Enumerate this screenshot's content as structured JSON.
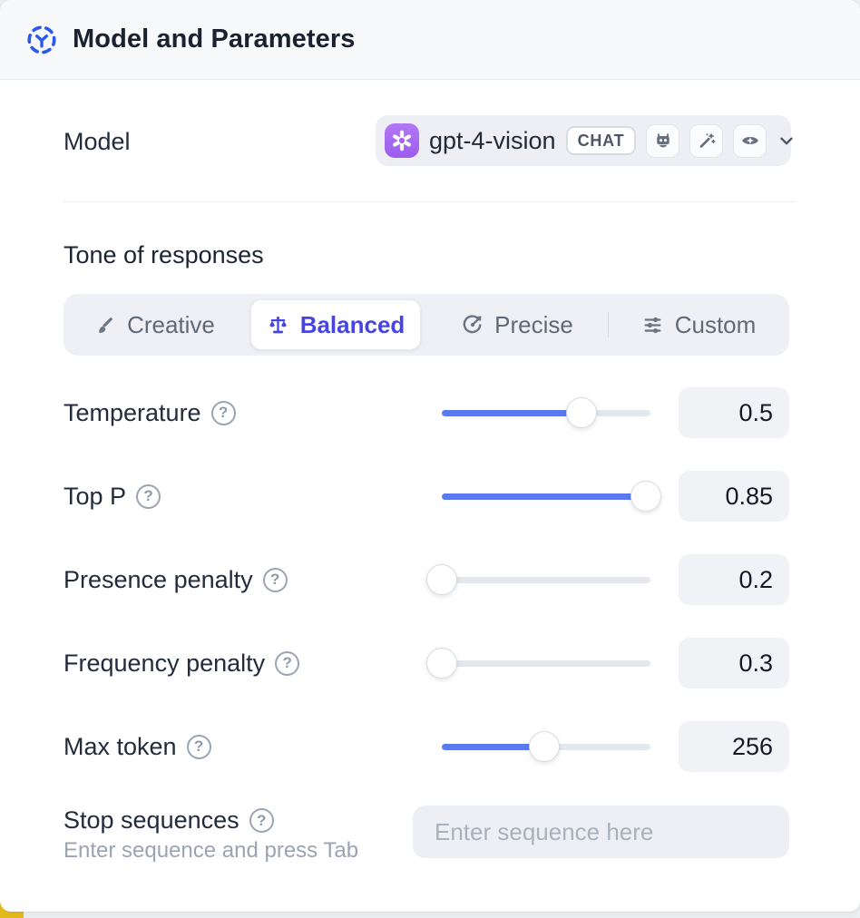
{
  "colors": {
    "accent_blue": "#5b79f1",
    "selected_indigo": "#4645e2",
    "provider_purple": "#a766f2",
    "header_icon_blue": "#2b59ee",
    "corner_accent_yellow": "#e5bb1c"
  },
  "header": {
    "title": "Model and Parameters"
  },
  "model": {
    "label": "Model",
    "selected": "gpt-4-vision",
    "type_badge": "CHAT"
  },
  "tone": {
    "heading": "Tone of responses",
    "options": [
      {
        "label": "Creative",
        "selected": false
      },
      {
        "label": "Balanced",
        "selected": true
      },
      {
        "label": "Precise",
        "selected": false
      },
      {
        "label": "Custom",
        "selected": false
      }
    ]
  },
  "parameters": [
    {
      "label": "Temperature",
      "value": "0.5",
      "fill_pct": 67
    },
    {
      "label": "Top P",
      "value": "0.85",
      "fill_pct": 98
    },
    {
      "label": "Presence penalty",
      "value": "0.2",
      "fill_pct": 0
    },
    {
      "label": "Frequency penalty",
      "value": "0.3",
      "fill_pct": 0
    },
    {
      "label": "Max token",
      "value": "256",
      "fill_pct": 49
    }
  ],
  "help_glyph": "?",
  "stop_sequences": {
    "label": "Stop sequences",
    "hint": "Enter sequence and press Tab",
    "placeholder": "Enter sequence here"
  }
}
